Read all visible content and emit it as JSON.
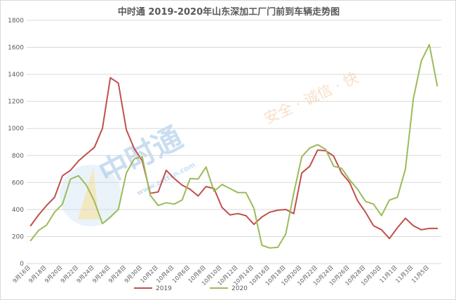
{
  "chart_data": {
    "type": "line",
    "title": "中时通 2019-2020年山东深加工厂门前到车辆走势图",
    "ylim": [
      0,
      1800
    ],
    "yticks": [
      0,
      200,
      400,
      600,
      800,
      1000,
      1200,
      1400,
      1600,
      1800
    ],
    "grid": true,
    "legend_position": "bottom",
    "categories": [
      "9月16日",
      "9月17日",
      "9月18日",
      "9月19日",
      "9月20日",
      "9月21日",
      "9月22日",
      "9月23日",
      "9月24日",
      "9月25日",
      "9月26日",
      "9月27日",
      "9月28日",
      "9月29日",
      "9月30日",
      "10月1日",
      "10月2日",
      "10月3日",
      "10月4日",
      "10月5日",
      "10月6日",
      "10月7日",
      "10月8日",
      "10月9日",
      "10月10日",
      "10月11日",
      "10月12日",
      "10月13日",
      "10月14日",
      "10月15日",
      "10月16日",
      "10月17日",
      "10月18日",
      "10月19日",
      "10月20日",
      "10月21日",
      "10月22日",
      "10月23日",
      "10月24日",
      "10月25日",
      "10月26日",
      "10月27日",
      "10月28日",
      "10月29日",
      "10月30日",
      "10月31日",
      "11月1日",
      "11月2日",
      "11月3日",
      "11月4日",
      "11月5日",
      "11月6日"
    ],
    "x_tick_labels": [
      "9月16日",
      "9月18日",
      "9月20日",
      "9月22日",
      "9月24日",
      "9月26日",
      "9月28日",
      "9月30日",
      "10月2日",
      "10月4日",
      "10月6日",
      "10月8日",
      "10月10日",
      "10月12日",
      "10月14日",
      "10月16日",
      "10月18日",
      "10月20日",
      "10月22日",
      "10月24日",
      "10月26日",
      "10月28日",
      "10月30日",
      "11月1日",
      "11月3日",
      "11月5日"
    ],
    "series": [
      {
        "name": "2019",
        "color": "#c0504d",
        "values": [
          280,
          360,
          430,
          490,
          650,
          690,
          760,
          810,
          860,
          1000,
          1375,
          1335,
          990,
          850,
          760,
          520,
          530,
          690,
          630,
          580,
          550,
          500,
          570,
          555,
          415,
          360,
          370,
          355,
          290,
          345,
          380,
          395,
          400,
          370,
          670,
          720,
          840,
          835,
          795,
          670,
          600,
          465,
          380,
          280,
          250,
          185,
          265,
          335,
          280,
          250,
          260,
          260
        ]
      },
      {
        "name": "2020",
        "color": "#9bbb59",
        "values": [
          170,
          245,
          285,
          380,
          440,
          625,
          650,
          580,
          460,
          295,
          345,
          400,
          670,
          775,
          790,
          505,
          430,
          450,
          440,
          470,
          630,
          625,
          715,
          535,
          585,
          555,
          525,
          525,
          410,
          135,
          115,
          120,
          220,
          520,
          790,
          855,
          880,
          845,
          720,
          705,
          620,
          550,
          460,
          440,
          355,
          470,
          490,
          700,
          1220,
          1500,
          1620,
          1315
        ]
      }
    ]
  },
  "watermark": {
    "logo_text": "中时通",
    "url_text": "www.zsttcn.com",
    "slogan": "安全 · 诚信 · 快"
  },
  "colors": {
    "grid": "#d9d9d9",
    "axis_text": "#595959",
    "watermark_orange": "#f3c59a",
    "watermark_blue": "#9fc4e6"
  }
}
